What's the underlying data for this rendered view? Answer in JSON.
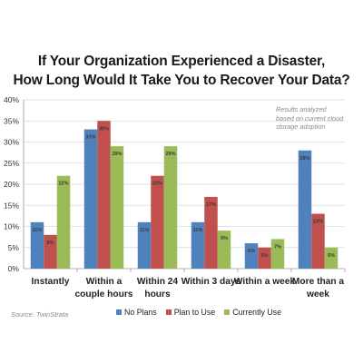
{
  "chart_data": {
    "type": "bar",
    "title_lines": [
      "If Your Organization Experienced a Disaster,",
      "How Long Would It Take You to Recover Your Data?"
    ],
    "annotation_lines": [
      "Results analyzed",
      "based on current cloud",
      "storage adoption"
    ],
    "source": "Source:  TwinStrata",
    "categories": [
      [
        "Instantly"
      ],
      [
        "Within a",
        "couple hours"
      ],
      [
        "Within 24",
        "hours"
      ],
      [
        "Within 3 days"
      ],
      [
        "Within a week"
      ],
      [
        "More than a",
        "week"
      ]
    ],
    "series": [
      {
        "name": "No Plans",
        "color": "#4f81bd",
        "values": [
          11,
          33,
          11,
          11,
          6,
          28
        ],
        "labels": [
          "11%",
          "33%",
          "11%",
          "11%",
          "6%",
          "28%"
        ]
      },
      {
        "name": "Plan to Use",
        "color": "#c0504d",
        "values": [
          8,
          35,
          22,
          17,
          5,
          13
        ],
        "labels": [
          "8%",
          "35%",
          "22%",
          "17%",
          "5%",
          "13%"
        ]
      },
      {
        "name": "Currently Use",
        "color": "#9bbb59",
        "values": [
          22,
          29,
          29,
          9,
          7,
          5
        ],
        "labels": [
          "22%",
          "29%",
          "29%",
          "9%",
          "7%",
          "5%"
        ]
      }
    ],
    "ylim": [
      0,
      40
    ],
    "yticks": [
      "0%",
      "5%",
      "10%",
      "15%",
      "20%",
      "25%",
      "30%",
      "35%",
      "40%"
    ],
    "grid": true,
    "legend_position": "bottom"
  }
}
